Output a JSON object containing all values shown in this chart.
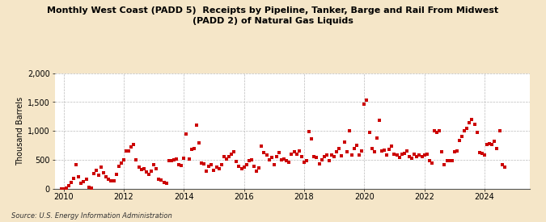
{
  "title": "Monthly West Coast (PADD 5)  Receipts by Pipeline, Tanker, Barge and Rail From Midwest\n(PADD 2) of Natural Gas Liquids",
  "ylabel": "Thousand Barrels",
  "source": "Source: U.S. Energy Information Administration",
  "background_color": "#f5e6c8",
  "plot_bg_color": "#ffffff",
  "marker_color": "#cc0000",
  "ylim": [
    0,
    2000
  ],
  "yticks": [
    0,
    500,
    1000,
    1500,
    2000
  ],
  "xlim_start": 2009.7,
  "xlim_end": 2025.5,
  "xticks": [
    2010,
    2012,
    2014,
    2016,
    2018,
    2020,
    2022,
    2024
  ],
  "data": [
    [
      2009.917,
      0
    ],
    [
      2010.0,
      2
    ],
    [
      2010.083,
      5
    ],
    [
      2010.167,
      55
    ],
    [
      2010.25,
      110
    ],
    [
      2010.333,
      180
    ],
    [
      2010.417,
      420
    ],
    [
      2010.5,
      200
    ],
    [
      2010.583,
      95
    ],
    [
      2010.667,
      120
    ],
    [
      2010.75,
      160
    ],
    [
      2010.833,
      30
    ],
    [
      2010.917,
      10
    ],
    [
      2011.0,
      260
    ],
    [
      2011.083,
      320
    ],
    [
      2011.167,
      230
    ],
    [
      2011.25,
      380
    ],
    [
      2011.333,
      280
    ],
    [
      2011.417,
      200
    ],
    [
      2011.5,
      160
    ],
    [
      2011.583,
      140
    ],
    [
      2011.667,
      130
    ],
    [
      2011.75,
      250
    ],
    [
      2011.833,
      390
    ],
    [
      2011.917,
      450
    ],
    [
      2012.0,
      500
    ],
    [
      2012.083,
      660
    ],
    [
      2012.167,
      650
    ],
    [
      2012.25,
      720
    ],
    [
      2012.333,
      760
    ],
    [
      2012.417,
      500
    ],
    [
      2012.5,
      380
    ],
    [
      2012.583,
      330
    ],
    [
      2012.667,
      340
    ],
    [
      2012.75,
      290
    ],
    [
      2012.833,
      250
    ],
    [
      2012.917,
      310
    ],
    [
      2013.0,
      410
    ],
    [
      2013.083,
      350
    ],
    [
      2013.167,
      170
    ],
    [
      2013.25,
      150
    ],
    [
      2013.333,
      110
    ],
    [
      2013.417,
      100
    ],
    [
      2013.5,
      480
    ],
    [
      2013.583,
      490
    ],
    [
      2013.667,
      500
    ],
    [
      2013.75,
      510
    ],
    [
      2013.833,
      420
    ],
    [
      2013.917,
      400
    ],
    [
      2014.0,
      530
    ],
    [
      2014.083,
      950
    ],
    [
      2014.167,
      520
    ],
    [
      2014.25,
      680
    ],
    [
      2014.333,
      700
    ],
    [
      2014.417,
      1100
    ],
    [
      2014.5,
      800
    ],
    [
      2014.583,
      450
    ],
    [
      2014.667,
      430
    ],
    [
      2014.75,
      310
    ],
    [
      2014.833,
      390
    ],
    [
      2014.917,
      420
    ],
    [
      2015.0,
      320
    ],
    [
      2015.083,
      380
    ],
    [
      2015.167,
      340
    ],
    [
      2015.25,
      420
    ],
    [
      2015.333,
      550
    ],
    [
      2015.417,
      510
    ],
    [
      2015.5,
      560
    ],
    [
      2015.583,
      600
    ],
    [
      2015.667,
      640
    ],
    [
      2015.75,
      470
    ],
    [
      2015.833,
      390
    ],
    [
      2015.917,
      350
    ],
    [
      2016.0,
      380
    ],
    [
      2016.083,
      420
    ],
    [
      2016.167,
      480
    ],
    [
      2016.25,
      500
    ],
    [
      2016.333,
      390
    ],
    [
      2016.417,
      300
    ],
    [
      2016.5,
      360
    ],
    [
      2016.583,
      740
    ],
    [
      2016.667,
      620
    ],
    [
      2016.75,
      580
    ],
    [
      2016.833,
      500
    ],
    [
      2016.917,
      540
    ],
    [
      2017.0,
      420
    ],
    [
      2017.083,
      550
    ],
    [
      2017.167,
      620
    ],
    [
      2017.25,
      500
    ],
    [
      2017.333,
      510
    ],
    [
      2017.417,
      480
    ],
    [
      2017.5,
      460
    ],
    [
      2017.583,
      600
    ],
    [
      2017.667,
      640
    ],
    [
      2017.75,
      600
    ],
    [
      2017.833,
      660
    ],
    [
      2017.917,
      560
    ],
    [
      2018.0,
      460
    ],
    [
      2018.083,
      480
    ],
    [
      2018.167,
      990
    ],
    [
      2018.25,
      870
    ],
    [
      2018.333,
      550
    ],
    [
      2018.417,
      540
    ],
    [
      2018.5,
      430
    ],
    [
      2018.583,
      500
    ],
    [
      2018.667,
      560
    ],
    [
      2018.75,
      580
    ],
    [
      2018.833,
      490
    ],
    [
      2018.917,
      590
    ],
    [
      2019.0,
      560
    ],
    [
      2019.083,
      640
    ],
    [
      2019.167,
      700
    ],
    [
      2019.25,
      570
    ],
    [
      2019.333,
      810
    ],
    [
      2019.417,
      640
    ],
    [
      2019.5,
      1000
    ],
    [
      2019.583,
      580
    ],
    [
      2019.667,
      700
    ],
    [
      2019.75,
      750
    ],
    [
      2019.833,
      590
    ],
    [
      2019.917,
      650
    ],
    [
      2020.0,
      1470
    ],
    [
      2020.083,
      1540
    ],
    [
      2020.167,
      980
    ],
    [
      2020.25,
      700
    ],
    [
      2020.333,
      640
    ],
    [
      2020.417,
      880
    ],
    [
      2020.5,
      1180
    ],
    [
      2020.583,
      650
    ],
    [
      2020.667,
      670
    ],
    [
      2020.75,
      580
    ],
    [
      2020.833,
      680
    ],
    [
      2020.917,
      740
    ],
    [
      2021.0,
      600
    ],
    [
      2021.083,
      590
    ],
    [
      2021.167,
      540
    ],
    [
      2021.25,
      600
    ],
    [
      2021.333,
      610
    ],
    [
      2021.417,
      650
    ],
    [
      2021.5,
      560
    ],
    [
      2021.583,
      530
    ],
    [
      2021.667,
      600
    ],
    [
      2021.75,
      560
    ],
    [
      2021.833,
      590
    ],
    [
      2021.917,
      560
    ],
    [
      2022.0,
      590
    ],
    [
      2022.083,
      600
    ],
    [
      2022.167,
      480
    ],
    [
      2022.25,
      450
    ],
    [
      2022.333,
      1010
    ],
    [
      2022.417,
      970
    ],
    [
      2022.5,
      1000
    ],
    [
      2022.583,
      640
    ],
    [
      2022.667,
      420
    ],
    [
      2022.75,
      490
    ],
    [
      2022.833,
      490
    ],
    [
      2022.917,
      480
    ],
    [
      2023.0,
      640
    ],
    [
      2023.083,
      650
    ],
    [
      2023.167,
      840
    ],
    [
      2023.25,
      900
    ],
    [
      2023.333,
      1000
    ],
    [
      2023.417,
      1050
    ],
    [
      2023.5,
      1140
    ],
    [
      2023.583,
      1200
    ],
    [
      2023.667,
      1120
    ],
    [
      2023.75,
      980
    ],
    [
      2023.833,
      620
    ],
    [
      2023.917,
      610
    ],
    [
      2024.0,
      590
    ],
    [
      2024.083,
      760
    ],
    [
      2024.167,
      780
    ],
    [
      2024.25,
      760
    ],
    [
      2024.333,
      820
    ],
    [
      2024.417,
      700
    ],
    [
      2024.5,
      1000
    ],
    [
      2024.583,
      410
    ],
    [
      2024.667,
      380
    ]
  ]
}
